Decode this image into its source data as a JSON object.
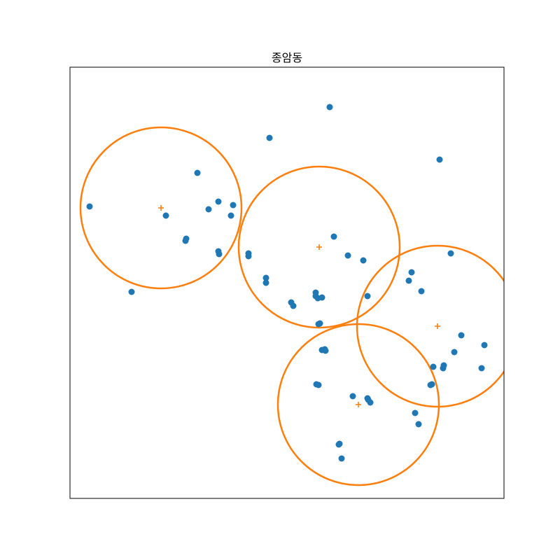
{
  "chart_data": {
    "type": "scatter",
    "title": "종암동",
    "xlabel": "",
    "ylabel": "",
    "xlim": [
      0,
      620
    ],
    "ylim": [
      0,
      616
    ],
    "grid": false,
    "axis_ticks": false,
    "series": [
      {
        "kind": "points",
        "color": "#1f77b4",
        "points": [
          [
            28,
            417
          ],
          [
            88,
            295
          ],
          [
            137,
            404
          ],
          [
            165,
            368
          ],
          [
            166,
            371
          ],
          [
            182,
            465
          ],
          [
            198,
            413
          ],
          [
            212,
            424
          ],
          [
            212,
            353
          ],
          [
            213,
            349
          ],
          [
            230,
            404
          ],
          [
            233,
            419
          ],
          [
            255,
            346
          ],
          [
            255,
            350
          ],
          [
            280,
            308
          ],
          [
            280,
            315
          ],
          [
            285,
            515
          ],
          [
            316,
            280
          ],
          [
            319,
            275
          ],
          [
            351,
            294
          ],
          [
            351,
            289
          ],
          [
            352,
            163
          ],
          [
            354,
            286
          ],
          [
            355,
            249
          ],
          [
            355,
            162
          ],
          [
            357,
            250
          ],
          [
            360,
            287
          ],
          [
            360,
            212
          ],
          [
            364,
            213
          ],
          [
            365,
            211
          ],
          [
            371,
            559
          ],
          [
            377,
            374
          ],
          [
            384,
            77
          ],
          [
            385,
            78
          ],
          [
            388,
            57
          ],
          [
            397,
            347
          ],
          [
            404,
            146
          ],
          [
            419,
            340
          ],
          [
            425,
            289
          ],
          [
            426,
            141
          ],
          [
            425,
            143
          ],
          [
            429,
            137
          ],
          [
            484,
            311
          ],
          [
            488,
            323
          ],
          [
            493,
            122
          ],
          [
            498,
            106
          ],
          [
            502,
            296
          ],
          [
            515,
            162
          ],
          [
            517,
            163
          ],
          [
            519,
            188
          ],
          [
            528,
            484
          ],
          [
            533,
            186
          ],
          [
            534,
            190
          ],
          [
            544,
            350
          ],
          [
            549,
            209
          ],
          [
            559,
            233
          ],
          [
            588,
            186
          ],
          [
            592,
            219
          ]
        ]
      },
      {
        "kind": "centers",
        "color": "#ff7f0e",
        "marker": "+",
        "radius": 115,
        "points": [
          [
            130,
            415
          ],
          [
            356,
            359
          ],
          [
            525,
            246
          ],
          [
            412,
            134
          ]
        ]
      }
    ]
  }
}
